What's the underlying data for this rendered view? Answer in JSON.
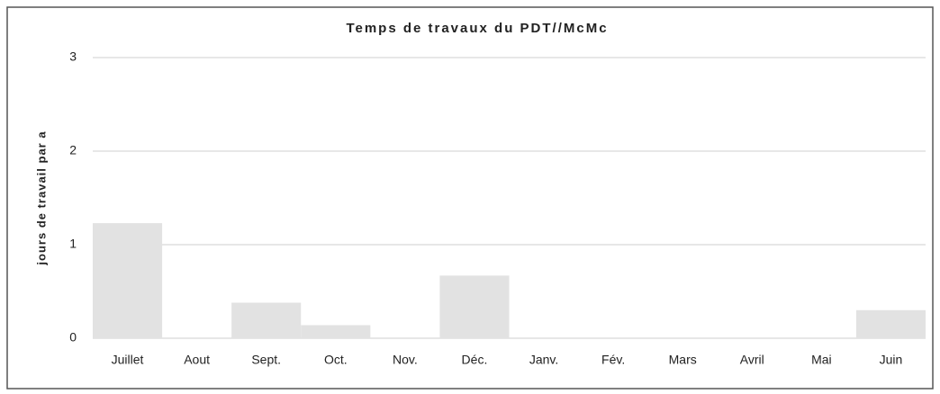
{
  "chart_data": {
    "type": "bar",
    "title": "Temps de travaux du PDT//McMc",
    "y_label": "jours de travail par a",
    "categories": [
      "Juillet",
      "Aout",
      "Sept.",
      "Oct.",
      "Nov.",
      "Déc.",
      "Janv.",
      "Fév.",
      "Mars",
      "Avril",
      "Mai",
      "Juin"
    ],
    "values": [
      1.23,
      0,
      0.38,
      0.14,
      0,
      0.67,
      0,
      0,
      0,
      0,
      0,
      0.3
    ],
    "color": "#e2e2e2",
    "ylim": [
      0,
      3
    ],
    "yticks": [
      0,
      1,
      2,
      3
    ],
    "grid": true
  }
}
